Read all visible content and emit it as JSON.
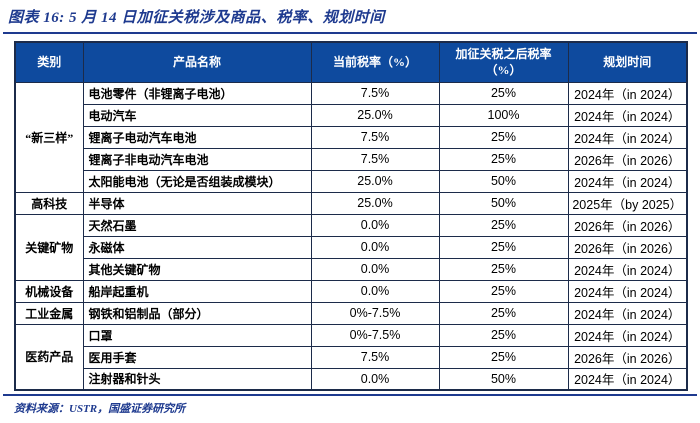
{
  "title": "图表 16: 5 月 14 日加征关税涉及商品、税率、规划时间",
  "colors": {
    "accent_blue": "#1e3a8f",
    "header_bg": "#0e4a9e",
    "header_text": "#ffffff",
    "border": "#1c2b4a",
    "cell_text": "#000000"
  },
  "table": {
    "headers": [
      "类别",
      "产品名称",
      "当前税率（%）",
      "加征关税之后税率（%）",
      "规划时间"
    ],
    "groups": [
      {
        "category": "“新三样”",
        "rows": [
          [
            "电池零件（非锂离子电池）",
            "7.5%",
            "25%",
            "2024年（in 2024）"
          ],
          [
            "电动汽车",
            "25.0%",
            "100%",
            "2024年（in 2024）"
          ],
          [
            "锂离子电动汽车电池",
            "7.5%",
            "25%",
            "2024年（in 2024）"
          ],
          [
            "锂离子非电动汽车电池",
            "7.5%",
            "25%",
            "2026年（in 2026）"
          ],
          [
            "太阳能电池（无论是否组装成模块）",
            "25.0%",
            "50%",
            "2024年（in 2024）"
          ]
        ]
      },
      {
        "category": "高科技",
        "rows": [
          [
            "半导体",
            "25.0%",
            "50%",
            "2025年（by 2025）"
          ]
        ]
      },
      {
        "category": "关键矿物",
        "rows": [
          [
            "天然石墨",
            "0.0%",
            "25%",
            "2026年（in 2026）"
          ],
          [
            "永磁体",
            "0.0%",
            "25%",
            "2026年（in 2026）"
          ],
          [
            "其他关键矿物",
            "0.0%",
            "25%",
            "2024年（in 2024）"
          ]
        ]
      },
      {
        "category": "机械设备",
        "rows": [
          [
            "船岸起重机",
            "0.0%",
            "25%",
            "2024年（in 2024）"
          ]
        ]
      },
      {
        "category": "工业金属",
        "rows": [
          [
            "钢铁和铝制品（部分）",
            "0%-7.5%",
            "25%",
            "2024年（in 2024）"
          ]
        ]
      },
      {
        "category": "医药产品",
        "rows": [
          [
            "口罩",
            "0%-7.5%",
            "25%",
            "2024年（in 2024）"
          ],
          [
            "医用手套",
            "7.5%",
            "25%",
            "2026年（in 2026）"
          ],
          [
            "注射器和针头",
            "0.0%",
            "50%",
            "2024年（in 2024）"
          ]
        ]
      }
    ]
  },
  "footer": {
    "source": "资料来源：USTR，国盛证券研究所"
  }
}
